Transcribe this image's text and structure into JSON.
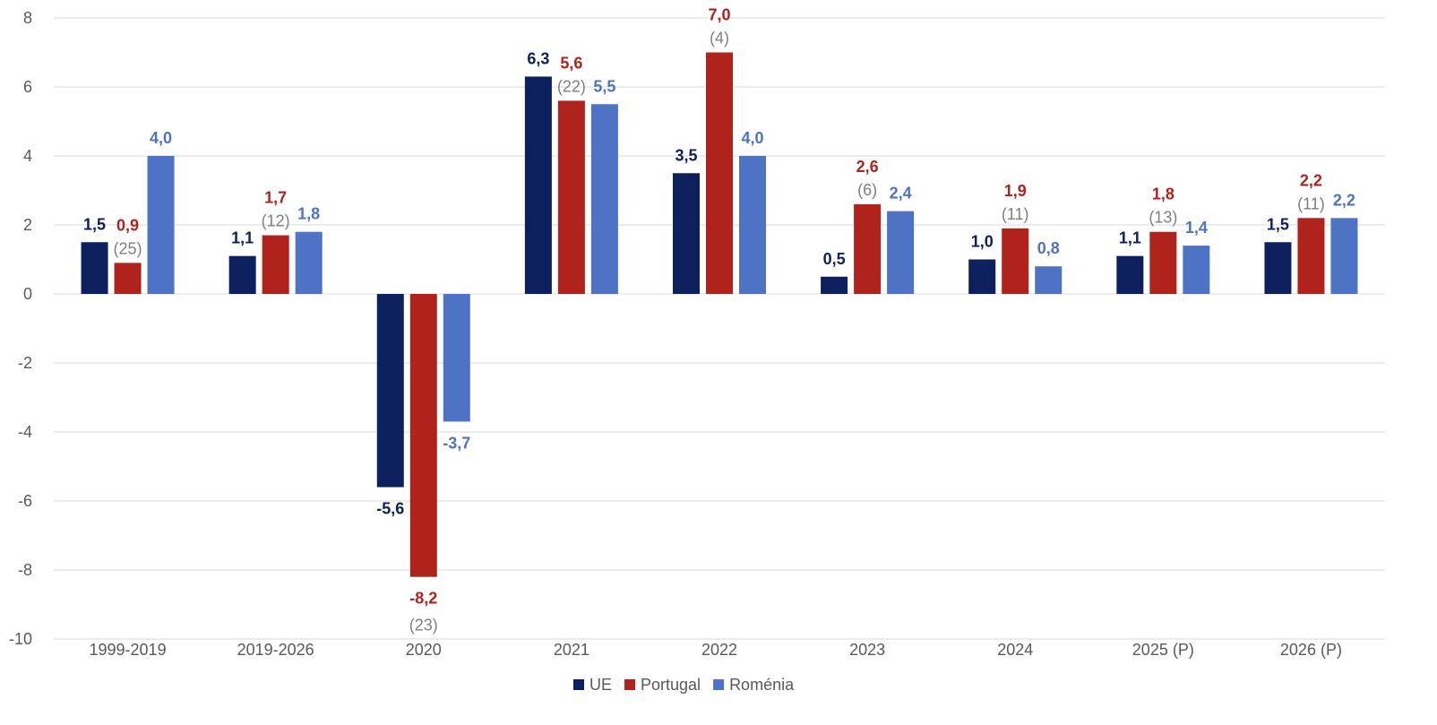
{
  "chart_data": {
    "type": "bar",
    "title": "",
    "xlabel": "",
    "ylabel": "",
    "ylim": [
      -10,
      8
    ],
    "yticks": [
      -10,
      -8,
      -6,
      -4,
      -2,
      0,
      2,
      4,
      6,
      8
    ],
    "grid": true,
    "legend_position": "bottom",
    "decimal_separator": ",",
    "categories": [
      "1999-2019",
      "2019-2026",
      "2020",
      "2021",
      "2022",
      "2023",
      "2024",
      "2025 (P)",
      "2026 (P)"
    ],
    "series": [
      {
        "name": "UE",
        "color": "#0d1f5c",
        "values": [
          1.5,
          1.1,
          -5.6,
          6.3,
          3.5,
          0.5,
          1.0,
          1.1,
          1.5
        ]
      },
      {
        "name": "Portugal",
        "color": "#b0221c",
        "values": [
          0.9,
          1.7,
          -8.2,
          5.6,
          7.0,
          2.6,
          1.9,
          1.8,
          2.2
        ]
      },
      {
        "name": "Roménia",
        "color": "#4e73c5",
        "values": [
          4.0,
          1.8,
          -3.7,
          5.5,
          4.0,
          2.4,
          0.8,
          1.4,
          2.2
        ]
      }
    ],
    "portugal_rank_labels": [
      "(25)",
      "(12)",
      "(23)",
      "(22)",
      "(4)",
      "(6)",
      "(11)",
      "(13)",
      "(11)"
    ],
    "rank_label_color": "#7f7f7f"
  }
}
